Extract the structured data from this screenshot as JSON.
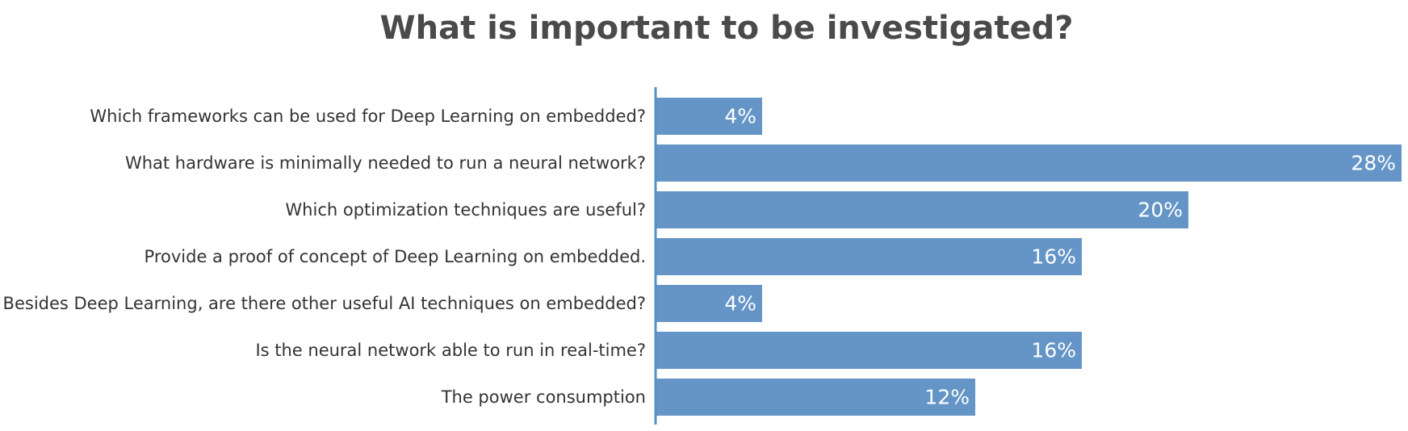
{
  "chart_data": {
    "type": "bar",
    "orientation": "horizontal",
    "title": "What is important to be investigated?",
    "categories": [
      "Which frameworks can be used for Deep Learning on embedded?",
      "What hardware is minimally needed to run a neural network?",
      "Which optimization techniques are useful?",
      "Provide a proof of concept of Deep Learning on embedded.",
      "Besides Deep Learning, are there other useful AI techniques on embedded?",
      "Is the neural network able to run in real-time?",
      "The power consumption"
    ],
    "values": [
      4,
      28,
      20,
      16,
      4,
      16,
      12
    ],
    "value_suffix": "%",
    "xlim": [
      0,
      28
    ],
    "grid": false,
    "legend": "none",
    "colors": {
      "bar": "#6495c6",
      "axis": "#5a8fc4",
      "label_text": "#333333",
      "value_text": "#ffffff",
      "title_text": "#4a4a4a"
    }
  }
}
